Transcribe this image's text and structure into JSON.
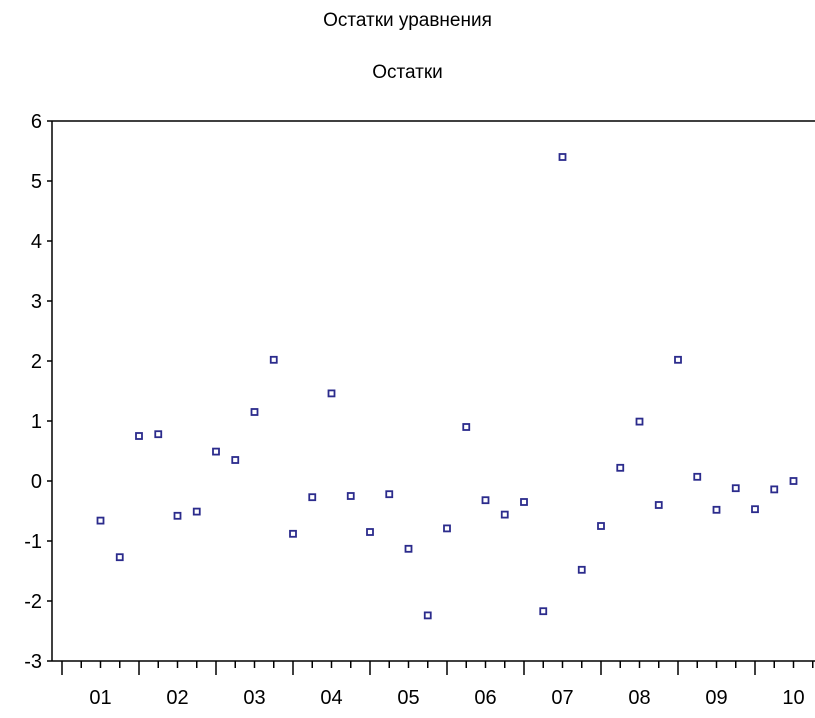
{
  "chart_data": {
    "type": "scatter",
    "title": "Остатки уравнения",
    "subtitle": "Остатки",
    "xlabel": "",
    "ylabel": "",
    "ylim": [
      -3,
      6
    ],
    "xlim": [
      0.7,
      10.3
    ],
    "grid": false,
    "marker_color": "#2b2b8c",
    "y_ticks": [
      "6",
      "5",
      "4",
      "3",
      "2",
      "1",
      "0",
      "-1",
      "-2",
      "-3"
    ],
    "x_tick_labels": [
      "01",
      "02",
      "03",
      "04",
      "05",
      "06",
      "07",
      "08",
      "09",
      "10"
    ],
    "series": [
      {
        "x": [
          1.5,
          1.75,
          2.0,
          2.25,
          2.5,
          2.75,
          3.0,
          3.25,
          3.5,
          3.75,
          4.0,
          4.25,
          4.5,
          4.75,
          5.0,
          5.25,
          5.5,
          5.75,
          6.0,
          6.25,
          6.5,
          6.75,
          7.0,
          7.25,
          7.5,
          7.75,
          8.0,
          8.25,
          8.5,
          8.75,
          9.0,
          9.25,
          9.5,
          9.75,
          10.0,
          10.25,
          10.5
        ],
        "y": [
          -0.66,
          -1.27,
          0.75,
          0.78,
          -0.58,
          -0.51,
          0.49,
          0.35,
          1.15,
          2.02,
          -0.88,
          -0.27,
          1.46,
          -0.25,
          -0.85,
          -0.22,
          -1.13,
          -2.24,
          -0.79,
          0.9,
          -0.32,
          -0.56,
          -0.35,
          -2.17,
          5.4,
          -1.48,
          -0.75,
          0.22,
          0.99,
          -0.4,
          2.02,
          0.07,
          -0.48,
          -0.12,
          -0.47,
          -0.14,
          0.0
        ]
      }
    ]
  }
}
